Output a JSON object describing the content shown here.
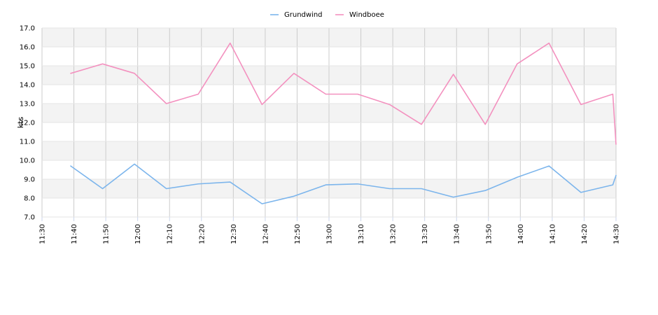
{
  "chart_data": {
    "type": "line",
    "ylabel": "kts",
    "ylim": [
      7.0,
      17.0
    ],
    "y_ticks": [
      "7.0",
      "8.0",
      "9.0",
      "10.0",
      "11.0",
      "12.0",
      "13.0",
      "14.0",
      "15.0",
      "16.0",
      "17.0"
    ],
    "x_range": [
      "11:30",
      "14:30"
    ],
    "x_ticks": [
      "11:30",
      "11:40",
      "11:50",
      "12:00",
      "12:10",
      "12:20",
      "12:30",
      "12:40",
      "12:50",
      "13:00",
      "13:10",
      "13:20",
      "13:30",
      "13:40",
      "13:50",
      "14:00",
      "14:10",
      "14:20",
      "14:30"
    ],
    "grid": true,
    "legend_position": "top-center",
    "series": [
      {
        "name": "Grundwind",
        "color": "#7cb5ec",
        "points": [
          [
            "11:39",
            9.7
          ],
          [
            "11:49",
            8.5
          ],
          [
            "11:59",
            9.8
          ],
          [
            "12:09",
            8.5
          ],
          [
            "12:19",
            8.75
          ],
          [
            "12:29",
            8.85
          ],
          [
            "12:39",
            7.7
          ],
          [
            "12:49",
            8.1
          ],
          [
            "12:59",
            8.7
          ],
          [
            "13:09",
            8.75
          ],
          [
            "13:19",
            8.5
          ],
          [
            "13:29",
            8.5
          ],
          [
            "13:39",
            8.05
          ],
          [
            "13:49",
            8.4
          ],
          [
            "13:59",
            9.1
          ],
          [
            "14:09",
            9.7
          ],
          [
            "14:19",
            8.3
          ],
          [
            "14:29",
            8.7
          ],
          [
            "14:30",
            9.2
          ]
        ]
      },
      {
        "name": "Windboee",
        "color": "#f391bf",
        "points": [
          [
            "11:39",
            14.6
          ],
          [
            "11:49",
            15.1
          ],
          [
            "11:59",
            14.6
          ],
          [
            "12:09",
            13.0
          ],
          [
            "12:19",
            13.5
          ],
          [
            "12:29",
            16.2
          ],
          [
            "12:39",
            12.95
          ],
          [
            "12:49",
            14.6
          ],
          [
            "12:59",
            13.5
          ],
          [
            "13:09",
            13.5
          ],
          [
            "13:19",
            12.95
          ],
          [
            "13:29",
            11.9
          ],
          [
            "13:39",
            14.55
          ],
          [
            "13:49",
            11.9
          ],
          [
            "13:59",
            15.1
          ],
          [
            "14:09",
            16.2
          ],
          [
            "14:19",
            12.95
          ],
          [
            "14:29",
            13.5
          ],
          [
            "14:30",
            10.85
          ]
        ]
      }
    ]
  }
}
